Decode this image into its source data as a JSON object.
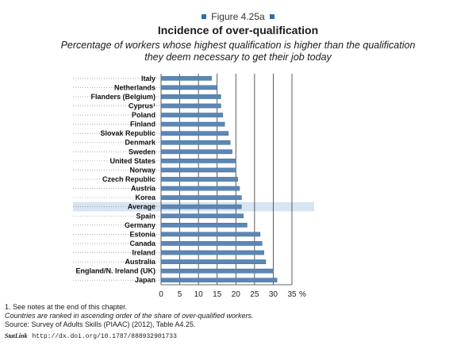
{
  "figure_label": "Figure 4.25a",
  "chart_data": {
    "type": "bar",
    "orientation": "horizontal",
    "title": "Incidence of over-qualification",
    "subtitle": "Percentage of workers whose highest qualification is higher than the qualification they deem necessary to get their job today",
    "categories": [
      "Italy",
      "Netherlands",
      "Flanders (Belgium)",
      "Cyprus¹",
      "Poland",
      "Finland",
      "Slovak Republic",
      "Denmark",
      "Sweden",
      "United States",
      "Norway",
      "Czech Republic",
      "Austria",
      "Korea",
      "Average",
      "Spain",
      "Germany",
      "Estonia",
      "Canada",
      "Ireland",
      "Australia",
      "England/N. Ireland (UK)",
      "Japan"
    ],
    "values": [
      13.5,
      15,
      16,
      16,
      16.5,
      17,
      18,
      18.5,
      19,
      20,
      20,
      20.5,
      21,
      21.5,
      21.5,
      22,
      23,
      26.5,
      27,
      27.5,
      28,
      30,
      31
    ],
    "highlight": "Average",
    "xlim": [
      0,
      35
    ],
    "xticks": [
      0,
      5,
      10,
      15,
      20,
      25,
      30,
      35
    ],
    "xunit": "%",
    "grid": true,
    "colors": {
      "bar": "#5b87b5",
      "bar_edge": "#3f6b99",
      "highlight_band": "#d7e4f2"
    }
  },
  "notes": {
    "note1": "1. See notes at the end of this chapter.",
    "note2": "Countries are ranked in ascending order of the share of over-qualified workers.",
    "source": "Source: Survey of Adults Skills (PIAAC) (2012), Table A4.25.",
    "statlink_brand": "StatLink",
    "statlink_url": "http://dx.doi.org/10.1787/888932901733"
  }
}
